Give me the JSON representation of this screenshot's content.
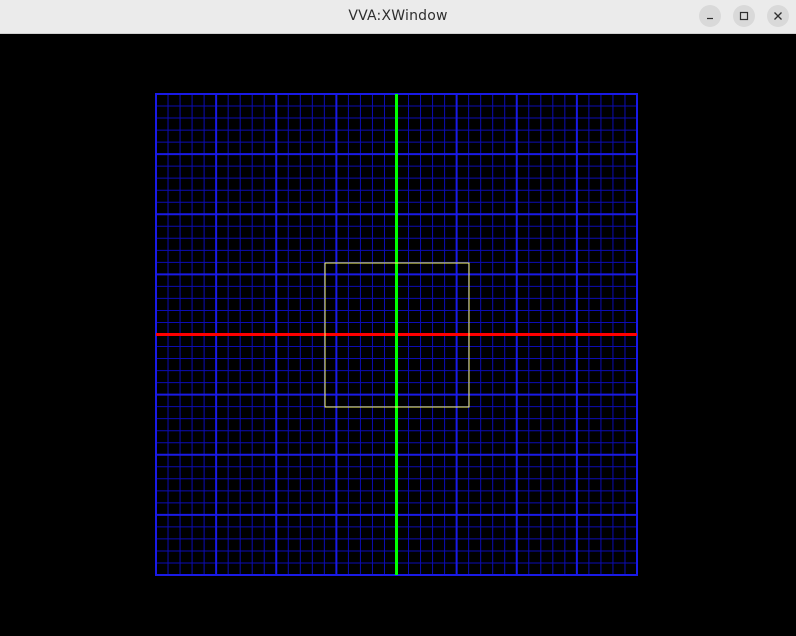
{
  "window": {
    "title": "VVA:XWindow"
  },
  "controls": {
    "minimize_icon": "minimize-icon",
    "maximize_icon": "maximize-icon",
    "close_icon": "close-icon"
  },
  "colors": {
    "titlebar": "#ebebeb",
    "background": "#000000",
    "grid_major": "#1a1ae6",
    "grid_minor": "#0c0cb4",
    "x_axis": "#ff0000",
    "y_axis": "#00ff00",
    "viewport_box": "#ffff66"
  },
  "scene": {
    "grid_divisions": 40,
    "major_every": 5
  }
}
